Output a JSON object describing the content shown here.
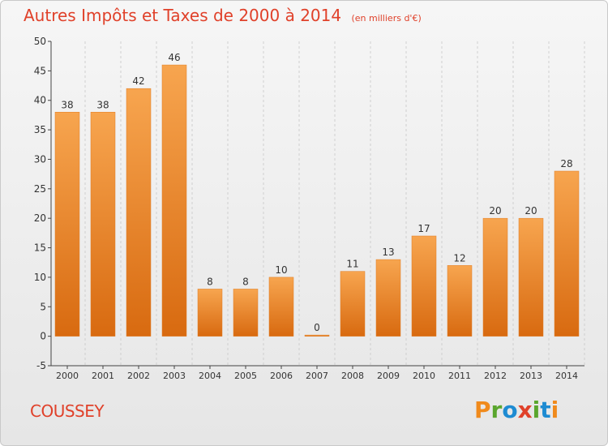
{
  "header": {
    "title": "Autres Impôts et Taxes de 2000 à 2014",
    "unit": "(en milliers d'€)"
  },
  "footer": {
    "commune": "COUSSEY",
    "logo_text": "Proxiti",
    "logo_colors": [
      "#f08a1c",
      "#5aa62d",
      "#1e8bd2",
      "#e0412a",
      "#5aa62d",
      "#1e8bd2",
      "#f08a1c"
    ]
  },
  "colors": {
    "title": "#e0412a",
    "bar_light": "#f7a54f",
    "bar_dark": "#d86a10",
    "axis": "#444444",
    "grid": "#cfcfcf"
  },
  "chart_data": {
    "type": "bar",
    "categories": [
      "2000",
      "2001",
      "2002",
      "2003",
      "2004",
      "2005",
      "2006",
      "2007",
      "2008",
      "2009",
      "2010",
      "2011",
      "2012",
      "2013",
      "2014"
    ],
    "values": [
      38,
      38,
      42,
      46,
      8,
      8,
      10,
      0,
      11,
      13,
      17,
      12,
      20,
      20,
      28
    ],
    "title": "Autres Impôts et Taxes de 2000 à 2014",
    "ylim": [
      -5,
      50
    ],
    "yticks": [
      -5,
      0,
      5,
      10,
      15,
      20,
      25,
      30,
      35,
      40,
      45,
      50
    ],
    "grid": "vertical dashed",
    "data_labels": true
  }
}
